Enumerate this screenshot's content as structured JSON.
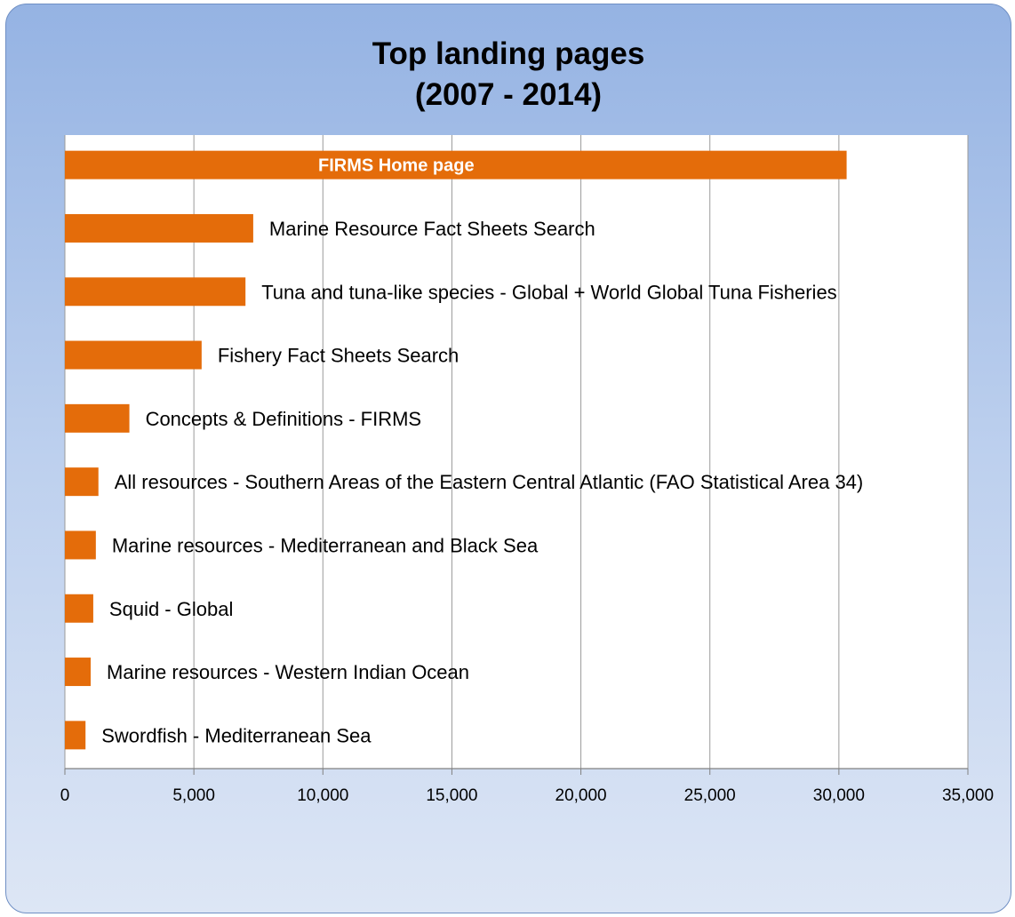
{
  "chart_data": {
    "type": "bar",
    "orientation": "horizontal",
    "title": [
      "Top landing pages",
      "(2007 - 2014)"
    ],
    "xlabel": "",
    "ylabel": "",
    "xlim": [
      0,
      35000
    ],
    "x_ticks": [
      "0",
      "5,000",
      "10,000",
      "15,000",
      "20,000",
      "25,000",
      "30,000",
      "35,000"
    ],
    "grid": "vertical",
    "legend": "none",
    "bar_color": "#e46c0a",
    "categories": [
      "FIRMS Home page",
      "Marine Resource Fact Sheets Search",
      "Tuna and tuna-like species - Global + World Global Tuna Fisheries",
      "Fishery Fact Sheets Search",
      "Concepts & Definitions - FIRMS",
      "All resources - Southern Areas of the Eastern Central Atlantic (FAO Statistical Area 34)",
      "Marine resources - Mediterranean and Black Sea",
      "Squid - Global",
      "Marine resources - Western Indian Ocean",
      "Swordfish - Mediterranean Sea"
    ],
    "values": [
      30300,
      7300,
      7000,
      5300,
      2500,
      1300,
      1200,
      1100,
      1000,
      800
    ]
  }
}
